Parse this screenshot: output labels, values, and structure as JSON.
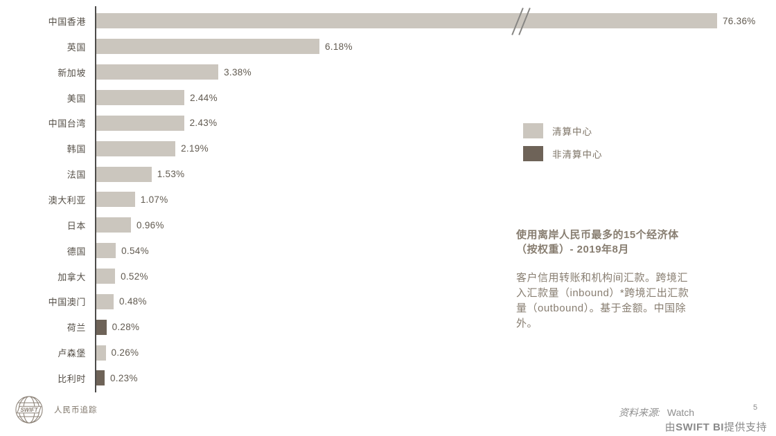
{
  "chart_data": {
    "type": "bar",
    "orientation": "horizontal",
    "title": "使用离岸人民币最多的15个经济体（按权重）- 2019年8月",
    "categories": [
      "中国香港",
      "英国",
      "新加坡",
      "美国",
      "中国台湾",
      "韩国",
      "法国",
      "澳大利亚",
      "日本",
      "德国",
      "加拿大",
      "中国澳门",
      "荷兰",
      "卢森堡",
      "比利时"
    ],
    "values": [
      76.36,
      6.18,
      3.38,
      2.44,
      2.43,
      2.19,
      1.53,
      1.07,
      0.96,
      0.54,
      0.52,
      0.48,
      0.28,
      0.26,
      0.23
    ],
    "value_labels": [
      "76.36%",
      "6.18%",
      "3.38%",
      "2.44%",
      "2.43%",
      "2.19%",
      "1.53%",
      "1.07%",
      "0.96%",
      "0.54%",
      "0.52%",
      "0.48%",
      "0.28%",
      "0.26%",
      "0.23%"
    ],
    "bar_types": [
      "清算中心",
      "清算中心",
      "清算中心",
      "清算中心",
      "清算中心",
      "清算中心",
      "清算中心",
      "清算中心",
      "清算中心",
      "清算中心",
      "清算中心",
      "清算中心",
      "非清算中心",
      "清算中心",
      "非清算中心"
    ],
    "colors": {
      "清算中心": "#CBC6BE",
      "非清算中心": "#6E6358"
    },
    "legend": [
      {
        "label": "清算中心",
        "color": "#CBC6BE"
      },
      {
        "label": "非清算中心",
        "color": "#6E6358"
      }
    ],
    "legend_position": "right",
    "axis_break_on": "中国香港",
    "xlabel": "",
    "ylabel": "",
    "grid": false
  },
  "annotation": {
    "title_lines": [
      "使用离岸人民币最多的15个经济体",
      "（按权重）- 2019年8月"
    ],
    "body_lines": [
      "客户信用转账和机构间汇款。跨境汇",
      "入汇款量（inbound）*跨境汇出汇款",
      "量（outbound）。基于金额。中国除",
      "外。"
    ]
  },
  "footer": {
    "logo_text": "SWIFT",
    "brand_label": "人民币追踪",
    "source_prefix": "资料来源:",
    "source_value": "Watch",
    "powered_prefix": "由",
    "powered_bold": "SWIFT BI",
    "powered_suffix": "提供支持",
    "page_number": "5"
  }
}
